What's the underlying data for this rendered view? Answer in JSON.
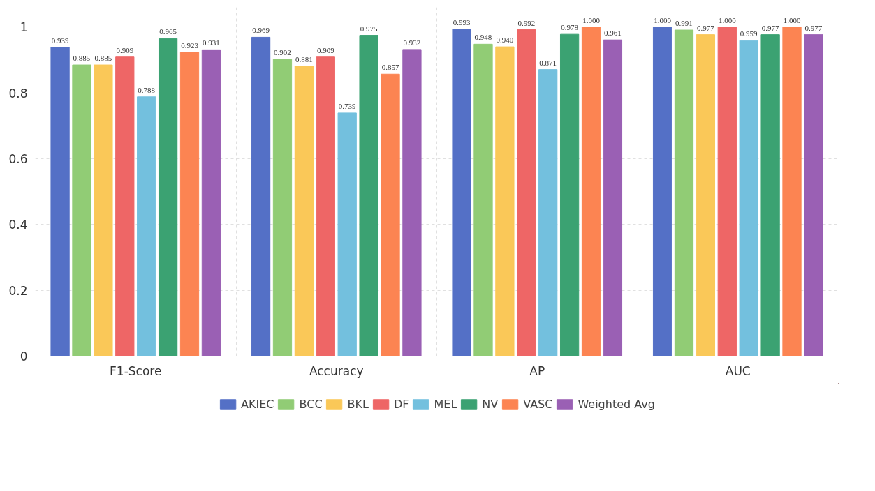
{
  "chart_data": {
    "type": "bar",
    "categories": [
      "F1-Score",
      "Accuracy",
      "AP",
      "AUC"
    ],
    "series": [
      {
        "name": "AKIEC",
        "color": "#5470c6",
        "values": [
          0.939,
          0.969,
          0.993,
          1.0
        ],
        "value_labels": [
          "0.939",
          "0.969",
          "0.993",
          "1.000"
        ]
      },
      {
        "name": "BCC",
        "color": "#91cc75",
        "values": [
          0.885,
          0.902,
          0.948,
          0.991
        ],
        "value_labels": [
          "0.885",
          "0.902",
          "0.948",
          "0.991"
        ]
      },
      {
        "name": "BKL",
        "color": "#fac858",
        "values": [
          0.885,
          0.881,
          0.94,
          0.977
        ],
        "value_labels": [
          "0.885",
          "0.881",
          "0.940",
          "0.977"
        ]
      },
      {
        "name": "DF",
        "color": "#ee6666",
        "values": [
          0.909,
          0.909,
          0.992,
          1.0
        ],
        "value_labels": [
          "0.909",
          "0.909",
          "0.992",
          "1.000"
        ]
      },
      {
        "name": "MEL",
        "color": "#73c0de",
        "values": [
          0.788,
          0.739,
          0.871,
          0.959
        ],
        "value_labels": [
          "0.788",
          "0.739",
          "0.871",
          "0.959"
        ]
      },
      {
        "name": "NV",
        "color": "#3ba272",
        "values": [
          0.965,
          0.975,
          0.978,
          0.977
        ],
        "value_labels": [
          "0.965",
          "0.975",
          "0.978",
          "0.977"
        ]
      },
      {
        "name": "VASC",
        "color": "#fc8452",
        "values": [
          0.923,
          0.857,
          1.0,
          1.0
        ],
        "value_labels": [
          "0.923",
          "0.857",
          "1.000",
          "1.000"
        ]
      },
      {
        "name": "Weighted Avg",
        "color": "#9a60b4",
        "values": [
          0.931,
          0.932,
          0.961,
          0.977
        ],
        "value_labels": [
          "0.931",
          "0.932",
          "0.961",
          "0.977"
        ]
      }
    ],
    "ylim": [
      0,
      1.06
    ],
    "yticks": [
      0,
      {
        "value": 0.2,
        "label": "0.2"
      },
      {
        "value": 0.4,
        "label": "0.4"
      },
      {
        "value": 0.6,
        "label": "0.6"
      },
      {
        "value": 0.8,
        "label": "0.8"
      },
      1
    ],
    "grid": true,
    "legend": "bottom"
  }
}
